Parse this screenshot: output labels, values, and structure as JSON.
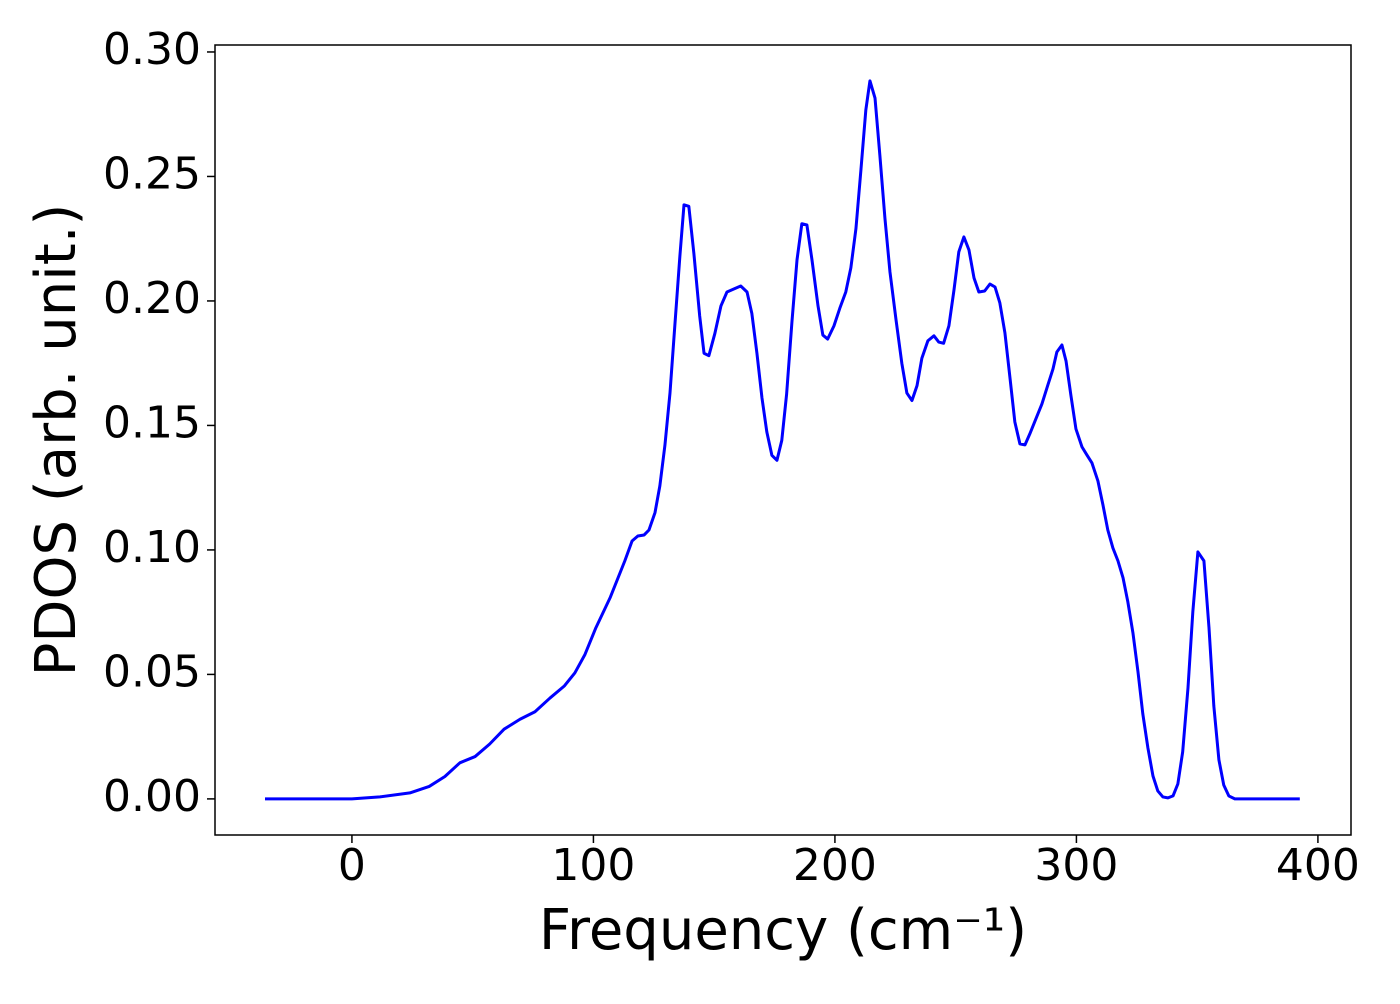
{
  "chart_data": {
    "type": "line",
    "xlabel": "Frequency (cm⁻¹)",
    "ylabel": "PDOS (arb. unit.)",
    "color": "#0000ff",
    "xlim": [
      -56.7,
      413.7
    ],
    "ylim": [
      -0.0145,
      0.3028
    ],
    "xticks": [
      0,
      100,
      200,
      300,
      400
    ],
    "yticks": [
      {
        "value": 0,
        "label": "0.00"
      },
      {
        "value": 0.05,
        "label": "0.05"
      },
      {
        "value": 0.1,
        "label": "0.10"
      },
      {
        "value": 0.15,
        "label": "0.15"
      },
      {
        "value": 0.2,
        "label": "0.20"
      },
      {
        "value": 0.25,
        "label": "0.25"
      },
      {
        "value": 0.3,
        "label": "0.30"
      }
    ],
    "grid": false,
    "x": [
      -36,
      0,
      11.6,
      24,
      32,
      38.5,
      44.7,
      51,
      57,
      63,
      69.6,
      75.8,
      82,
      88,
      92.3,
      96.5,
      101,
      107,
      113,
      116,
      118.4,
      121,
      123,
      125.5,
      127.5,
      129.6,
      131.7,
      133.7,
      135.8,
      137.5,
      139.5,
      141.6,
      144,
      145.8,
      147.8,
      150.3,
      152.8,
      155.3,
      158.6,
      161,
      163.6,
      165.6,
      167.7,
      169.8,
      171.8,
      173.9,
      176,
      178,
      180,
      182.2,
      184.3,
      186.3,
      188.4,
      190.5,
      193,
      195,
      197,
      199.6,
      202,
      204.5,
      206.6,
      208.7,
      210.8,
      212.8,
      214.5,
      216.6,
      218.6,
      220.7,
      222.8,
      225.3,
      227.7,
      229.8,
      231.9,
      234,
      236,
      238.5,
      241,
      243,
      245,
      247.2,
      249.3,
      251.3,
      253.4,
      255.5,
      257.6,
      259.6,
      262,
      264.2,
      266.3,
      268.3,
      270.4,
      272.5,
      274.5,
      276.6,
      278.7,
      280.7,
      283.2,
      285.7,
      288.2,
      290.3,
      291.9,
      294,
      295.7,
      297.7,
      299.8,
      302.3,
      304.3,
      306.4,
      308.9,
      311,
      313,
      315.1,
      317.2,
      319.3,
      321.3,
      323.4,
      325.5,
      327.5,
      329.6,
      331.7,
      333.7,
      335.8,
      337.9,
      340,
      342,
      344,
      346.2,
      348.2,
      350.3,
      352.8,
      354.9,
      356.9,
      359,
      361,
      363.1,
      365.6,
      392.5
    ],
    "values": [
      0,
      0,
      0.0008,
      0.0024,
      0.005,
      0.009,
      0.0145,
      0.017,
      0.022,
      0.028,
      0.032,
      0.035,
      0.0405,
      0.0454,
      0.0506,
      0.058,
      0.0687,
      0.081,
      0.0956,
      0.1036,
      0.1056,
      0.106,
      0.108,
      0.115,
      0.1257,
      0.142,
      0.163,
      0.19,
      0.218,
      0.2386,
      0.238,
      0.219,
      0.194,
      0.179,
      0.178,
      0.187,
      0.198,
      0.2036,
      0.205,
      0.206,
      0.2036,
      0.195,
      0.179,
      0.161,
      0.1474,
      0.138,
      0.136,
      0.144,
      0.1626,
      0.1916,
      0.2165,
      0.231,
      0.2305,
      0.2165,
      0.198,
      0.1863,
      0.1847,
      0.19,
      0.197,
      0.2036,
      0.2133,
      0.229,
      0.253,
      0.2767,
      0.2884,
      0.2815,
      0.2586,
      0.2333,
      0.2116,
      0.1924,
      0.175,
      0.163,
      0.16,
      0.166,
      0.177,
      0.184,
      0.186,
      0.1835,
      0.183,
      0.19,
      0.2044,
      0.2197,
      0.2257,
      0.2205,
      0.2092,
      0.2036,
      0.204,
      0.2068,
      0.2056,
      0.1992,
      0.1871,
      0.169,
      0.1514,
      0.1426,
      0.1422,
      0.1466,
      0.1526,
      0.1586,
      0.1663,
      0.1727,
      0.1795,
      0.1823,
      0.1759,
      0.1622,
      0.1486,
      0.1414,
      0.1382,
      0.135,
      0.1277,
      0.118,
      0.108,
      0.1008,
      0.0956,
      0.0888,
      0.0791,
      0.0667,
      0.051,
      0.0341,
      0.0205,
      0.0092,
      0.0032,
      0.0008,
      0.0004,
      0.0012,
      0.006,
      0.0189,
      0.0446,
      0.0751,
      0.0992,
      0.0956,
      0.0687,
      0.0373,
      0.0157,
      0.0056,
      0.0012,
      0,
      0
    ]
  }
}
